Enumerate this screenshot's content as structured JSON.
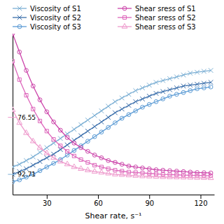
{
  "chart_data": {
    "type": "line",
    "xlabel": "Shear rate, s⁻¹",
    "x": [
      10,
      14,
      18,
      22,
      26,
      30,
      34,
      38,
      42,
      46,
      50,
      54,
      58,
      62,
      66,
      70,
      74,
      78,
      82,
      86,
      90,
      94,
      98,
      102,
      106,
      110,
      114,
      118,
      122,
      126
    ],
    "xlim": [
      10,
      128
    ],
    "ylim": [
      0,
      175
    ],
    "xticks": [
      30,
      60,
      90,
      120
    ],
    "tick_labels": "x",
    "legend": "top",
    "series": [
      {
        "name": "Viscosity of S1",
        "color": "#7bafd4",
        "marker": "x",
        "values": [
          30,
          33,
          37,
          41,
          46,
          51,
          56,
          61,
          66,
          71,
          76,
          81,
          86,
          91,
          96,
          101,
          105,
          109,
          113,
          116,
          119,
          122,
          124,
          126,
          128,
          130,
          132,
          133,
          134,
          135
        ]
      },
      {
        "name": "Viscosity of S2",
        "color": "#3a6eab",
        "marker": "x",
        "values": [
          22,
          25,
          28,
          32,
          36,
          40,
          44,
          49,
          54,
          59,
          64,
          69,
          74,
          79,
          84,
          89,
          93,
          97,
          101,
          104,
          107,
          110,
          112,
          114,
          116,
          118,
          119,
          120,
          121,
          122
        ]
      },
      {
        "name": "Viscosity of S3",
        "color": "#5b9bd5",
        "marker": "circle",
        "values": [
          14,
          16,
          19,
          22,
          26,
          30,
          34,
          38,
          43,
          48,
          53,
          58,
          63,
          68,
          73,
          78,
          83,
          87,
          91,
          95,
          98,
          101,
          104,
          107,
          109,
          111,
          113,
          115,
          116,
          117
        ]
      },
      {
        "name": "Shear sress of S1",
        "color": "#cc44aa",
        "marker": "circle",
        "values": [
          175,
          155,
          135,
          118,
          103,
          90,
          79,
          70,
          62,
          56,
          51,
          47,
          43,
          40,
          37,
          35,
          33,
          31,
          30,
          29,
          28,
          27,
          26.5,
          26,
          25.5,
          25,
          24.5,
          24,
          23.8,
          23.5
        ]
      },
      {
        "name": "Shear sress of S2",
        "color": "#dd66bb",
        "marker": "square",
        "values": [
          145,
          125,
          108,
          93,
          80,
          69,
          60,
          53,
          47,
          42,
          38,
          35,
          32,
          30,
          28,
          26.5,
          25.5,
          24.5,
          24,
          23.5,
          23,
          22.5,
          22,
          21.8,
          21.5,
          21.2,
          21,
          20.8,
          20.6,
          20.5
        ]
      },
      {
        "name": "Shear sress of S3",
        "color": "#ee99cc",
        "marker": "triangle-up",
        "values": [
          92,
          78,
          67,
          58,
          51,
          45,
          40,
          36,
          33,
          30,
          28,
          26.5,
          25,
          24,
          23,
          22,
          21.5,
          21,
          20.5,
          20,
          19.8,
          19.5,
          19.2,
          19,
          18.8,
          18.6,
          18.5,
          18.3,
          18.2,
          18.0
        ]
      }
    ],
    "annotations": [
      {
        "text": "92.71",
        "x": 13,
        "y": 22,
        "color": "#7bafd4"
      },
      {
        "text": "76.55",
        "x": 13,
        "y": 84,
        "color": "#ee99cc"
      }
    ]
  }
}
